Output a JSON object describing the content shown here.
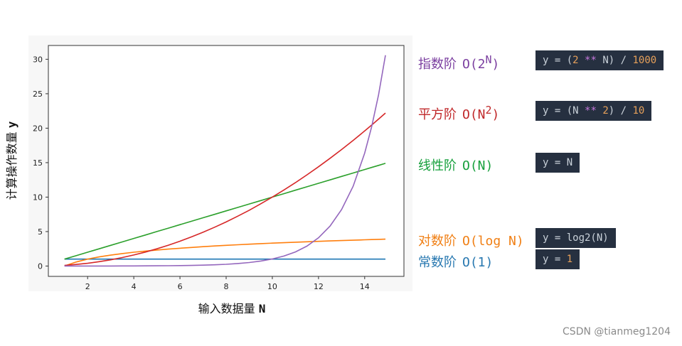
{
  "chart_data": {
    "type": "line",
    "xlabel": "输入数据量",
    "xlabel_var": "N",
    "ylabel": "计算操作数量",
    "ylabel_var": "y",
    "xlim": [
      0.3,
      15.7
    ],
    "ylim": [
      -1.5,
      32
    ],
    "xticks": [
      2,
      4,
      6,
      8,
      10,
      12,
      14
    ],
    "yticks": [
      0,
      5,
      10,
      15,
      20,
      25,
      30
    ],
    "x": [
      1,
      1.5,
      2,
      2.5,
      3,
      3.5,
      4,
      4.5,
      5,
      5.5,
      6,
      6.5,
      7,
      7.5,
      8,
      8.5,
      9,
      9.5,
      10,
      10.5,
      11,
      11.5,
      12,
      12.5,
      13,
      13.5,
      14,
      14.3,
      14.6,
      14.9
    ],
    "series": [
      {
        "color": "#1f77b4",
        "values": [
          1,
          1,
          1,
          1,
          1,
          1,
          1,
          1,
          1,
          1,
          1,
          1,
          1,
          1,
          1,
          1,
          1,
          1,
          1,
          1,
          1,
          1,
          1,
          1,
          1,
          1,
          1,
          1,
          1,
          1
        ]
      },
      {
        "color": "#ff7f0e",
        "values": [
          0,
          0.58,
          1,
          1.32,
          1.58,
          1.81,
          2,
          2.17,
          2.32,
          2.46,
          2.58,
          2.7,
          2.81,
          2.91,
          3,
          3.09,
          3.17,
          3.25,
          3.32,
          3.39,
          3.46,
          3.52,
          3.58,
          3.64,
          3.7,
          3.75,
          3.81,
          3.84,
          3.87,
          3.9
        ]
      },
      {
        "color": "#2ca02c",
        "values": [
          1,
          1.5,
          2,
          2.5,
          3,
          3.5,
          4,
          4.5,
          5,
          5.5,
          6,
          6.5,
          7,
          7.5,
          8,
          8.5,
          9,
          9.5,
          10,
          10.5,
          11,
          11.5,
          12,
          12.5,
          13,
          13.5,
          14,
          14.3,
          14.6,
          14.9
        ]
      },
      {
        "color": "#d62728",
        "values": [
          0.1,
          0.23,
          0.4,
          0.63,
          0.9,
          1.23,
          1.6,
          2.03,
          2.5,
          3.03,
          3.6,
          4.23,
          4.9,
          5.63,
          6.4,
          7.23,
          8.1,
          9.03,
          10,
          11.03,
          12.1,
          13.23,
          14.4,
          15.63,
          16.9,
          18.23,
          19.6,
          20.45,
          21.32,
          22.2
        ]
      },
      {
        "color": "#9467bd",
        "values": [
          0.002,
          0.003,
          0.004,
          0.006,
          0.008,
          0.011,
          0.016,
          0.023,
          0.032,
          0.045,
          0.064,
          0.091,
          0.128,
          0.181,
          0.256,
          0.362,
          0.512,
          0.724,
          1.024,
          1.448,
          2.048,
          2.896,
          4.096,
          5.793,
          8.192,
          11.585,
          16.384,
          20.171,
          24.834,
          30.574
        ]
      }
    ]
  },
  "legend": [
    {
      "name": "指数阶",
      "big_o": "O(2",
      "sup": "N",
      "close": ")",
      "color": "#7b3fa0",
      "code": [
        {
          "t": "y = (",
          "c": "c-var"
        },
        {
          "t": "2",
          "c": "c-num"
        },
        {
          "t": " ** ",
          "c": "c-op"
        },
        {
          "t": "N) / ",
          "c": "c-var"
        },
        {
          "t": "1000",
          "c": "c-num"
        }
      ]
    },
    {
      "name": "平方阶",
      "big_o": "O(N",
      "sup": "2",
      "close": ")",
      "color": "#c0282a",
      "code": [
        {
          "t": "y = (N ",
          "c": "c-var"
        },
        {
          "t": "**",
          "c": "c-op"
        },
        {
          "t": " ",
          "c": "c-var"
        },
        {
          "t": "2",
          "c": "c-num"
        },
        {
          "t": ") / ",
          "c": "c-var"
        },
        {
          "t": "10",
          "c": "c-num"
        }
      ]
    },
    {
      "name": "线性阶",
      "big_o": "O(N)",
      "sup": "",
      "close": "",
      "color": "#16a03c",
      "code": [
        {
          "t": "y = N",
          "c": "c-var"
        }
      ]
    },
    {
      "name": "对数阶",
      "big_o": "O(log N)",
      "sup": "",
      "close": "",
      "color": "#f07f14",
      "code": [
        {
          "t": "y = log2(N)",
          "c": "c-var"
        }
      ]
    },
    {
      "name": "常数阶",
      "big_o": "O(1)",
      "sup": "",
      "close": "",
      "color": "#2878b0",
      "code": [
        {
          "t": "y = ",
          "c": "c-var"
        },
        {
          "t": "1",
          "c": "c-num"
        }
      ]
    }
  ],
  "watermark": "CSDN @tianmeg1204"
}
